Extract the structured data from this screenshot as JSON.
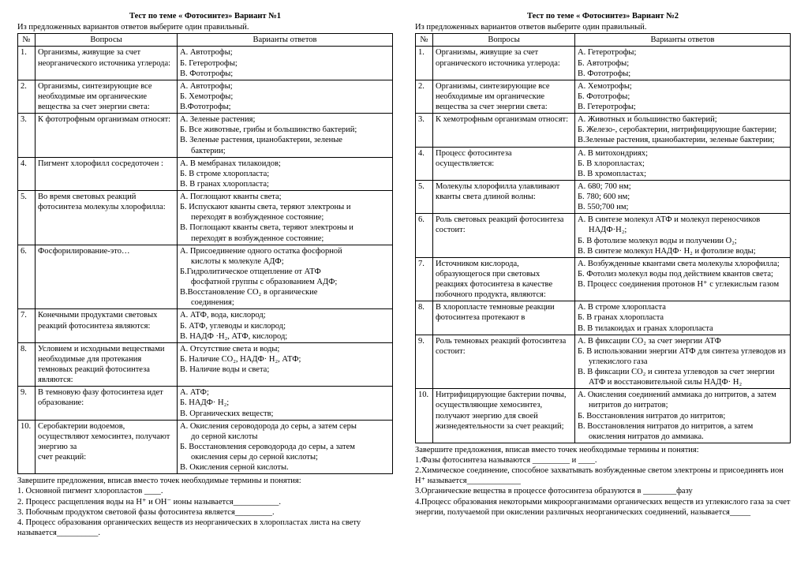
{
  "variants": [
    {
      "title": "Тест по теме  « Фотосинтез»   Вариант №1",
      "subtitle": "Из предложенных вариантов ответов выберите один правильный.",
      "headers": {
        "num": "№",
        "question": "Вопросы",
        "answers": "Варианты ответов"
      },
      "rows": [
        {
          "n": "1.",
          "q": "Организмы, живущие за счет неорганического источника углерода:",
          "a": [
            "А. Автотрофы;",
            "Б. Гетеротрофы;",
            "В. Фототрофы;"
          ]
        },
        {
          "n": "2.",
          "q": "Организмы, синтезирующие все необходимые им органические вещества за счет энергии света:",
          "a": [
            "А. Автотрофы;",
            "Б. Хемотрофы;",
            "В.Фототрофы;"
          ]
        },
        {
          "n": "3.",
          "q": "К фототрофным организмам относят:",
          "a": [
            "А. Зеленые растения;",
            "Б. Все животные, грибы и большинство бактерий;",
            "В. Зеленые растения, цианобактерии, зеленые",
            {
              "indent": true,
              "t": "бактерии;"
            }
          ]
        },
        {
          "n": "4.",
          "q": "Пигмент хлорофилл сосредоточен :",
          "a": [
            "А. В мембранах тилакоидов;",
            "Б. В строме хлоропласта;",
            "В. В гранах хлоропласта;"
          ]
        },
        {
          "n": "5.",
          "q": "Во время световых реакций фотосинтеза молекулы хлорофилла:",
          "a": [
            "А. Поглощают кванты света;",
            "Б. Испускают кванты света, теряют электроны и",
            {
              "indent": true,
              "t": "переходят в возбужденное состояние;"
            },
            "В. Поглощают кванты света, теряют электроны и",
            {
              "indent": true,
              "t": "переходят в возбужденное состояние;"
            }
          ]
        },
        {
          "n": "6.",
          "q": "Фосфорилирование-это…",
          "a": [
            "А. Присоединение одного остатка фосфорной",
            {
              "indent": true,
              "t": "кислоты к молекуле АДФ;"
            },
            "Б.Гидролитическое отщепление от АТФ",
            {
              "indent": true,
              "t": "фосфатной группы с образованием АДФ;"
            },
            "В.Восстановление СО₂ в органические",
            {
              "indent": true,
              "t": "соединения;"
            }
          ]
        },
        {
          "n": "7.",
          "q": "Конечными продуктами световых реакций фотосинтеза являются:",
          "a": [
            "А. АТФ, вода, кислород;",
            "Б. АТФ, углеводы и кислород;",
            "В. НАДФ ·Н₂, АТФ, кислород;"
          ]
        },
        {
          "n": "8.",
          "q": "Условием и исходными веществами необходимые для протекания темновых реакций фотосинтеза являются:",
          "a": [
            "А. Отсутствие света и воды;",
            "Б. Наличие СО₂, НАДФ· Н₂, АТФ;",
            "В. Наличие воды и света;"
          ]
        },
        {
          "n": "9.",
          "q": "В темновую фазу  фотосинтеза  идет образование:",
          "a": [
            "А. АТФ;",
            "Б. НАДФ· Н₂;",
            "В. Органических веществ;"
          ]
        },
        {
          "n": "10.",
          "q": "Серобактерии водоемов, осуществляют хемосинтез, получают энергию за\nсчет реакций:",
          "a": [
            "А. Окисления сероводорода до серы, а затем серы",
            {
              "indent": true,
              "t": "до серной кислоты"
            },
            "Б. Восстановления сероводорода до серы, а затем",
            {
              "indent": true,
              "t": "окисления серы до серной кислоты;"
            },
            "В. Окисления серной кислоты."
          ]
        }
      ],
      "completion_title": "Завершите предложения, вписав вместо точек необходимые термины и понятия:",
      "completion": [
        "1. Основной пигмент хлоропластов  ____.",
        "2. Процесс расщепления воды на Н⁺  и ОН⁻ ионы называется___________.",
        "3. Побочным продуктом световой фазы фотосинтеза является_________.",
        "4. Процесс образования органических веществ из неорганических  в хлоропластах листа на свету называется__________."
      ]
    },
    {
      "title": "Тест по теме  « Фотосинтез»   Вариант №2",
      "subtitle": "Из предложенных вариантов ответов выберите один правильный.",
      "headers": {
        "num": "№",
        "question": "Вопросы",
        "answers": "Варианты ответов"
      },
      "rows": [
        {
          "n": "1.",
          "q": "Организмы, живущие за счет органического источника углерода:",
          "a": [
            "А. Гетеротрофы;",
            "Б. Автотрофы;",
            "В. Фототрофы;"
          ]
        },
        {
          "n": "2.",
          "q": "Организмы, синтезирующие все необходимые им органические вещества за счет энергии света:",
          "a": [
            "А. Хемотрофы;",
            "Б. Фототрофы;",
            "В. Гетеротрофы;"
          ]
        },
        {
          "n": "3.",
          "q": "К хемотрофным организмам относят:",
          "a": [
            "А. Животных и большинство бактерий;",
            "Б. Железо-, серобактерии, нитрифицирующие бактерии;",
            "В.Зеленые растения, цианобактерии, зеленые бактерии;"
          ]
        },
        {
          "n": "4.",
          "q": "Процесс фотосинтеза осуществляется:",
          "a": [
            "А. В митохондриях;",
            "Б. В хлоропластах;",
            "В. В хромопластах;"
          ]
        },
        {
          "n": "5.",
          "q": "Молекулы хлорофилла улавливают\nкванты света длиной волны:",
          "a": [
            "А. 680; 700 нм;",
            "Б. 780; 600 нм;",
            "В. 550;700 нм;"
          ]
        },
        {
          "n": "6.",
          "q": "Роль световых реакций фотосинтеза\n состоит:",
          "a": [
            "А. В синтезе молекул АТФ и молекул переносчиков",
            {
              "indent": true,
              "t": "НАДФ·Н₂;"
            },
            "Б. В фотолизе молекул воды и получении О₂;",
            "В. В синтезе молекул НАДФ· Н₂ и фотолизе воды;"
          ]
        },
        {
          "n": "7.",
          "q": "Источником кислорода, образующегося при световых реакциях фотосинтеза в качестве побочного продукта, являются:",
          "a": [
            "А. Возбужденные квантами света молекулы хлорофилла;",
            "Б. Фотолиз молекул воды под действием квантов света;",
            "В. Процесс соединения протонов Н⁺ с углекислым газом"
          ]
        },
        {
          "n": "8.",
          "q": "В хлоропласте темновые реакции фотосинтеза протекают в",
          "a": [
            "А. В строме хлоропласта",
            "Б. В гранах хлоропласта",
            "В. В тилакоидах и гранах хлоропласта"
          ]
        },
        {
          "n": "9.",
          "q": "Роль темновых реакций фотосинтеза состоит:",
          "a": [
            "А. В фиксации СО₂ за счет энергии АТФ",
            "Б. В использовании энергии АТФ для синтеза углеводов из",
            {
              "indent": true,
              "t": "углекислого газа"
            },
            "В. В фиксации СО₂ и синтеза углеводов за счет энергии",
            {
              "indent": true,
              "t": "АТФ и восстановительной силы НАДФ· Н₂"
            }
          ]
        },
        {
          "n": "10.",
          "q": "Нитрифицирующие бактерии почвы, осуществляющие хемосинтез, получают энергию для своей жизнедеятельности за счет реакций;",
          "a": [
            "А. Окисления соединений аммиака до нитритов, а затем",
            {
              "indent": true,
              "t": "нитритов до нитратов;"
            },
            "Б. Восстановления нитратов до нитритов;",
            "В. Восстановления нитратов до нитритов, а затем",
            {
              "indent": true,
              "t": "окисления нитратов до аммиака."
            }
          ]
        }
      ],
      "completion_title": "Завершите предложения, вписав вместо точек необходимые термины и понятия:",
      "completion": [
        "1.Фазы фотосинтеза называются _________  и ____.",
        "2.Химическое соединение, способное захватывать возбужденные светом электроны и присоединять ион Н⁺   называется_____________",
        "3.Органические вещества в процессе фотосинтеза образуются в ________фазу",
        "4.Процесс образования некоторыми микроорганизмами органических веществ из углекислого газа за счет энергии, получаемой при окислении различных неорганических соединений, называется_____"
      ]
    }
  ]
}
